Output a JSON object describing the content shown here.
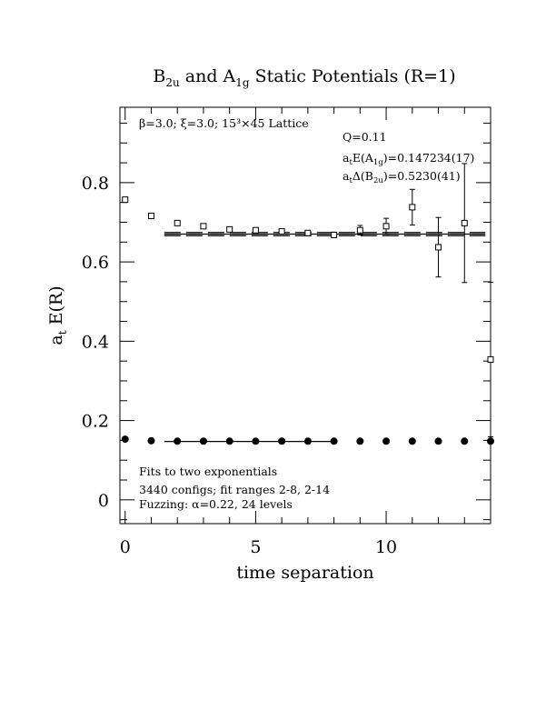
{
  "chart_data": {
    "type": "scatter",
    "title": {
      "main": "B",
      "sub1": "2u",
      "mid": " and A",
      "sub2": "1g",
      "tail": " Static Potentials (R=1)"
    },
    "xlabel": "time separation",
    "ylabel": {
      "main": "a",
      "sub": "t",
      "tail": " E(R)"
    },
    "xlim": [
      -0.2,
      14
    ],
    "ylim": [
      -0.06,
      0.99
    ],
    "xticks": [
      0,
      5,
      10
    ],
    "xtick_labels": [
      "0",
      "5",
      "10"
    ],
    "yticks": [
      0,
      0.2,
      0.4,
      0.6,
      0.8
    ],
    "ytick_labels": [
      "0",
      "0.2",
      "0.4",
      "0.6",
      "0.8"
    ],
    "grid": false,
    "legend": "none",
    "annotations": {
      "lattice": "β=3.0; ξ=3.0; 15³×45 Lattice",
      "q": "Q=0.11",
      "energy": {
        "pre": "a",
        "sub1": "t",
        "mid": "E(A",
        "sub2": "1g",
        "tail": ")=0.147234(17)"
      },
      "gap": {
        "pre": "a",
        "sub1": "t",
        "mid": "Δ(B",
        "sub2": "2u",
        "tail": ")=0.5230(41)"
      },
      "fits_line1": "Fits to two exponentials",
      "fits_line2": "3440 configs; fit ranges 2-8, 2-14",
      "fits_line3": "Fuzzing: α=0.22, 24 levels"
    },
    "series": [
      {
        "marker": "open-square",
        "x": [
          0,
          1,
          2,
          3,
          4,
          5,
          6,
          7,
          8,
          9,
          10,
          11,
          12,
          13,
          14
        ],
        "y": [
          0.757,
          0.716,
          0.698,
          0.69,
          0.682,
          0.68,
          0.677,
          0.673,
          0.668,
          0.68,
          0.69,
          0.738,
          0.637,
          0.698,
          0.354
        ],
        "err": [
          0.003,
          0.003,
          0.003,
          0.004,
          0.004,
          0.005,
          0.006,
          0.006,
          0.007,
          0.012,
          0.02,
          0.045,
          0.075,
          0.15,
          0.195
        ]
      },
      {
        "marker": "filled-circle",
        "x": [
          0,
          1,
          2,
          3,
          4,
          5,
          6,
          7,
          8,
          9,
          10,
          11,
          12,
          13,
          14
        ],
        "y": [
          0.153,
          0.149,
          0.148,
          0.148,
          0.148,
          0.148,
          0.148,
          0.148,
          0.148,
          0.148,
          0.148,
          0.148,
          0.148,
          0.148,
          0.148
        ],
        "err": [
          0,
          0,
          0,
          0,
          0,
          0,
          0,
          0,
          0,
          0,
          0,
          0,
          0,
          0,
          0
        ]
      }
    ],
    "fits": [
      {
        "style": "solid",
        "x_range": [
          1.5,
          13.8
        ],
        "y": 0.6702
      },
      {
        "style": "dashed",
        "x_range": [
          1.5,
          13.8
        ],
        "y": 0.6662
      },
      {
        "style": "dashed",
        "x_range": [
          1.5,
          13.8
        ],
        "y": 0.6742
      },
      {
        "style": "solid",
        "x_range": [
          1.5,
          8.0
        ],
        "y": 0.1472
      }
    ]
  }
}
